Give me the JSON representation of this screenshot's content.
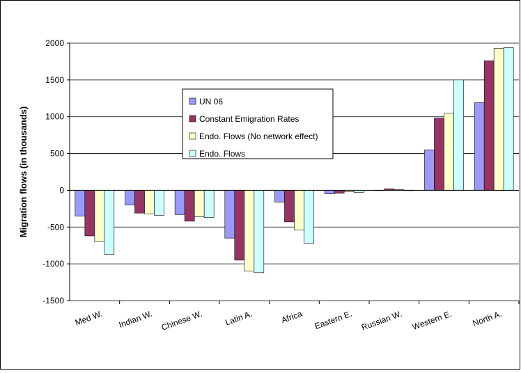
{
  "chart_data": {
    "type": "bar",
    "y_label": "Migration flows (in thousands)",
    "categories": [
      "Med W.",
      "Indian W.",
      "Chinese W.",
      "Latin A.",
      "Africa",
      "Eastern E.",
      "Russian W.",
      "Western E.",
      "North A."
    ],
    "series": [
      {
        "name": "UN 06",
        "color": "#9999ff",
        "values": [
          -350,
          -200,
          -330,
          -650,
          -160,
          -50,
          0,
          550,
          1190
        ]
      },
      {
        "name": "Constant Emigration Rates",
        "color": "#993366",
        "values": [
          -620,
          -310,
          -420,
          -950,
          -430,
          -40,
          20,
          980,
          1760
        ]
      },
      {
        "name": "Endo. Flows (No network effect)",
        "color": "#ffffcc",
        "values": [
          -700,
          -320,
          -360,
          -1100,
          -540,
          -20,
          10,
          1050,
          1930
        ]
      },
      {
        "name": "Endo. Flows",
        "color": "#ccffff",
        "values": [
          -870,
          -340,
          -370,
          -1120,
          -720,
          -30,
          0,
          1500,
          1940
        ]
      }
    ],
    "ylim": [
      -1500,
      2000
    ],
    "yticks": [
      -1500,
      -1000,
      -500,
      0,
      500,
      1000,
      1500,
      2000
    ],
    "grid": true
  }
}
